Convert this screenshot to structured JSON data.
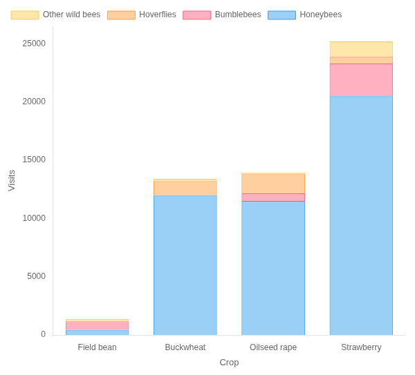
{
  "chart_data": {
    "type": "bar",
    "stacked": true,
    "categories": [
      "Field bean",
      "Buckwheat",
      "Oilseed rape",
      "Strawberry"
    ],
    "series": [
      {
        "name": "Honeybees",
        "values": [
          450,
          12000,
          11500,
          20500
        ]
      },
      {
        "name": "Bumblebees",
        "values": [
          650,
          0,
          650,
          2800
        ]
      },
      {
        "name": "Hoverflies",
        "values": [
          80,
          1200,
          1700,
          600
        ]
      },
      {
        "name": "Other wild bees",
        "values": [
          200,
          200,
          100,
          1300
        ]
      }
    ],
    "xlabel": "Crop",
    "ylabel": "Visits",
    "ylim": [
      0,
      26500
    ],
    "yticks": [
      0,
      5000,
      10000,
      15000,
      20000,
      25000
    ],
    "grid": false,
    "legend": "upper left"
  }
}
